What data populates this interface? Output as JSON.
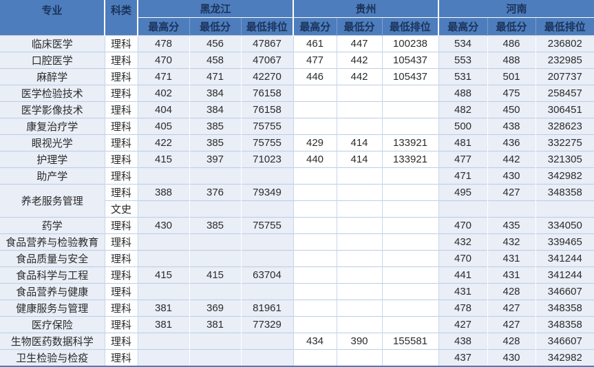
{
  "table": {
    "header": {
      "major": "专业",
      "category": "科类",
      "provinces": [
        "黑龙江",
        "贵州",
        "河南"
      ],
      "sub": [
        "最高分",
        "最低分",
        "最低排位"
      ]
    },
    "colors": {
      "header_bg": "#4d7dbc",
      "header_text": "#1b335a",
      "band_fill": "#e9eef7",
      "grid_line": "#bccde4",
      "bottom_border": "#4a7cb8"
    },
    "rows": [
      {
        "major": "临床医学",
        "major_rowspan": 1,
        "category": "理科",
        "values": [
          "478",
          "456",
          "47867",
          "461",
          "447",
          "100238",
          "534",
          "486",
          "236802"
        ]
      },
      {
        "major": "口腔医学",
        "major_rowspan": 1,
        "category": "理科",
        "values": [
          "470",
          "458",
          "47067",
          "477",
          "442",
          "105437",
          "553",
          "488",
          "232985"
        ]
      },
      {
        "major": "麻醉学",
        "major_rowspan": 1,
        "category": "理科",
        "values": [
          "471",
          "471",
          "42270",
          "446",
          "442",
          "105437",
          "531",
          "501",
          "207737"
        ]
      },
      {
        "major": "医学检验技术",
        "major_rowspan": 1,
        "category": "理科",
        "values": [
          "402",
          "384",
          "76158",
          "",
          "",
          "",
          "488",
          "475",
          "258457"
        ]
      },
      {
        "major": "医学影像技术",
        "major_rowspan": 1,
        "category": "理科",
        "values": [
          "404",
          "384",
          "76158",
          "",
          "",
          "",
          "482",
          "450",
          "306451"
        ]
      },
      {
        "major": "康复治疗学",
        "major_rowspan": 1,
        "category": "理科",
        "values": [
          "405",
          "385",
          "75755",
          "",
          "",
          "",
          "500",
          "438",
          "328623"
        ]
      },
      {
        "major": "眼视光学",
        "major_rowspan": 1,
        "category": "理科",
        "values": [
          "422",
          "385",
          "75755",
          "429",
          "414",
          "133921",
          "481",
          "436",
          "332275"
        ]
      },
      {
        "major": "护理学",
        "major_rowspan": 1,
        "category": "理科",
        "values": [
          "415",
          "397",
          "71023",
          "440",
          "414",
          "133921",
          "477",
          "442",
          "321305"
        ]
      },
      {
        "major": "助产学",
        "major_rowspan": 1,
        "category": "理科",
        "values": [
          "",
          "",
          "",
          "",
          "",
          "",
          "471",
          "430",
          "342982"
        ]
      },
      {
        "major": "养老服务管理",
        "major_rowspan": 2,
        "category": "理科",
        "values": [
          "388",
          "376",
          "79349",
          "",
          "",
          "",
          "495",
          "427",
          "348358"
        ]
      },
      {
        "major": null,
        "major_rowspan": 1,
        "category": "文史",
        "values": [
          "",
          "",
          "",
          "",
          "",
          "",
          "",
          "",
          ""
        ]
      },
      {
        "major": "药学",
        "major_rowspan": 1,
        "category": "理科",
        "values": [
          "430",
          "385",
          "75755",
          "",
          "",
          "",
          "470",
          "435",
          "334050"
        ]
      },
      {
        "major": "食品营养与检验教育",
        "major_rowspan": 1,
        "category": "理科",
        "values": [
          "",
          "",
          "",
          "",
          "",
          "",
          "432",
          "432",
          "339465"
        ]
      },
      {
        "major": "食品质量与安全",
        "major_rowspan": 1,
        "category": "理科",
        "values": [
          "",
          "",
          "",
          "",
          "",
          "",
          "470",
          "431",
          "341244"
        ]
      },
      {
        "major": "食品科学与工程",
        "major_rowspan": 1,
        "category": "理科",
        "values": [
          "415",
          "415",
          "63704",
          "",
          "",
          "",
          "441",
          "431",
          "341244"
        ]
      },
      {
        "major": "食品营养与健康",
        "major_rowspan": 1,
        "category": "理科",
        "values": [
          "",
          "",
          "",
          "",
          "",
          "",
          "431",
          "428",
          "346607"
        ]
      },
      {
        "major": "健康服务与管理",
        "major_rowspan": 1,
        "category": "理科",
        "values": [
          "381",
          "369",
          "81961",
          "",
          "",
          "",
          "478",
          "427",
          "348358"
        ]
      },
      {
        "major": "医疗保险",
        "major_rowspan": 1,
        "category": "理科",
        "values": [
          "381",
          "381",
          "77329",
          "",
          "",
          "",
          "427",
          "427",
          "348358"
        ]
      },
      {
        "major": "生物医药数据科学",
        "major_rowspan": 1,
        "category": "理科",
        "values": [
          "",
          "",
          "",
          "434",
          "390",
          "155581",
          "438",
          "428",
          "346607"
        ]
      },
      {
        "major": "卫生检验与检疫",
        "major_rowspan": 1,
        "category": "理科",
        "values": [
          "",
          "",
          "",
          "",
          "",
          "",
          "437",
          "430",
          "342982"
        ]
      }
    ]
  }
}
